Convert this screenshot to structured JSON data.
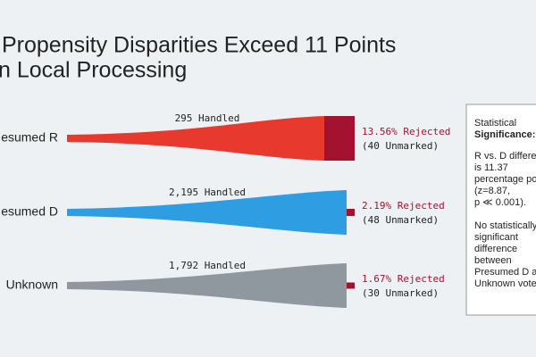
{
  "chart_data": {
    "type": "funnel",
    "title_lines": [
      "Propensity Disparities Exceed 11 Points",
      "n Local Processing"
    ],
    "categories": [
      "esumed R",
      "esumed D",
      "Unknown"
    ],
    "colors": [
      "#e8392f",
      "#2f9de2",
      "#8f989e"
    ],
    "rejected_color": "#a3132f",
    "handled": {
      "values": [
        295,
        2195,
        1792
      ],
      "value_labels": [
        "295 Handled",
        "2,195 Handled",
        "1,792 Handled"
      ]
    },
    "rejected_pct": {
      "values": [
        13.56,
        2.19,
        1.67
      ],
      "value_labels": [
        "13.56% Rejected",
        "2.19% Rejected",
        "1.67% Rejected"
      ]
    },
    "unmarked": {
      "values": [
        40,
        48,
        30
      ],
      "value_labels": [
        "(40 Unmarked)",
        "(48 Unmarked)",
        "(30 Unmarked)"
      ]
    },
    "annotation": {
      "heading": [
        "Statistical",
        "Significance:"
      ],
      "lines": [
        "R vs. D differe",
        "is 11.37",
        "percentage po",
        "(z=8.87,",
        "p ≪ 0.001).",
        "",
        "No statistically",
        "significant",
        "difference",
        "between",
        "Presumed D a",
        "Unknown vote"
      ]
    }
  }
}
